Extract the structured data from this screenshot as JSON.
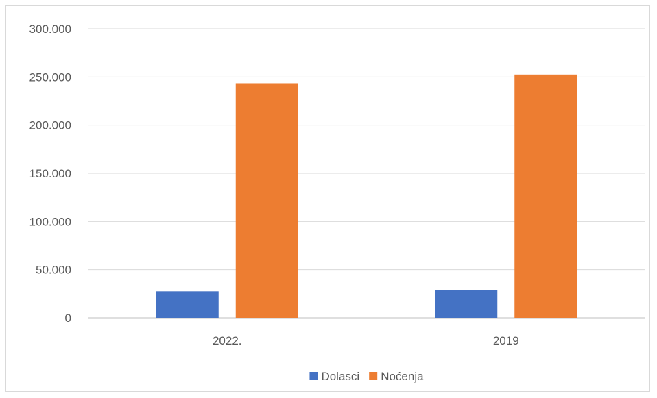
{
  "chart_data": {
    "type": "bar",
    "categories": [
      "2022.",
      "2019"
    ],
    "series": [
      {
        "name": "Dolasci",
        "values": [
          27500,
          29000
        ],
        "color": "#4472c4"
      },
      {
        "name": "Noćenja",
        "values": [
          243500,
          252500
        ],
        "color": "#ed7d31"
      }
    ],
    "ylim": [
      0,
      300000
    ],
    "y_ticks": [
      0,
      50000,
      100000,
      150000,
      200000,
      250000,
      300000
    ],
    "y_tick_labels": [
      "0",
      "50.000",
      "100.000",
      "150.000",
      "200.000",
      "250.000",
      "300.000"
    ],
    "grid": true,
    "legend_position": "bottom",
    "title": "",
    "xlabel": "",
    "ylabel": ""
  }
}
